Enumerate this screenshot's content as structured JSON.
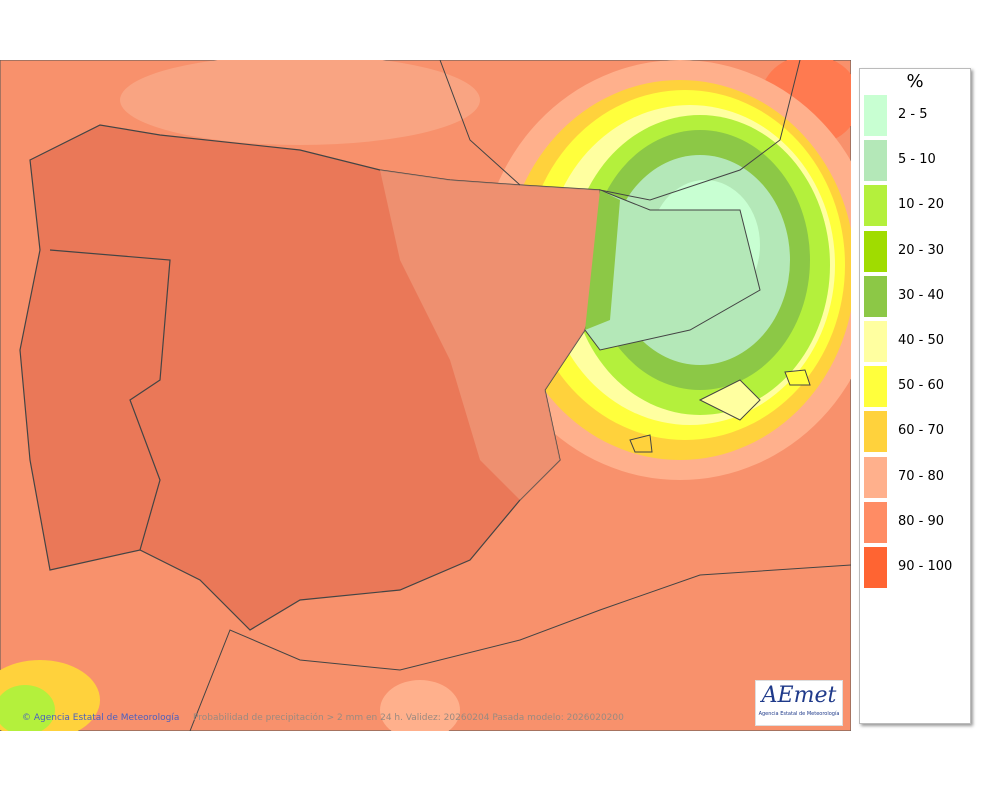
{
  "legend": {
    "title": "%",
    "items": [
      {
        "label": "2 - 5",
        "color": "#c8ffd2"
      },
      {
        "label": "5 - 10",
        "color": "#b4e8b8"
      },
      {
        "label": "10 - 20",
        "color": "#b4f03c"
      },
      {
        "label": "20 - 30",
        "color": "#a0dc00"
      },
      {
        "label": "30 - 40",
        "color": "#8cc846"
      },
      {
        "label": "40 - 50",
        "color": "#ffffa0"
      },
      {
        "label": "50 - 60",
        "color": "#ffff3c"
      },
      {
        "label": "60 - 70",
        "color": "#ffd23c"
      },
      {
        "label": "70 - 80",
        "color": "#ffb08c"
      },
      {
        "label": "80 - 90",
        "color": "#ff8c64"
      },
      {
        "label": "90 - 100",
        "color": "#ff6432"
      }
    ]
  },
  "footer": {
    "credit": "Agencia Estatal de Meteorología",
    "caption": "Probabilidad de precipitación > 2 mm en 24 h. Validez: 20260204 Pasada modelo: 2026020200"
  },
  "logo": {
    "name": "AEmet",
    "subtitle": "Agencia Estatal de Meteorología"
  }
}
